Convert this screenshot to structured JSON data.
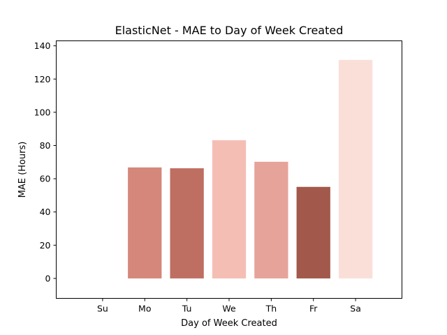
{
  "chart_data": {
    "type": "bar",
    "title": "ElasticNet - MAE to Day of Week Created",
    "xlabel": "Day of Week Created",
    "ylabel": "MAE (Hours)",
    "categories": [
      "Su",
      "Mo",
      "Tu",
      "We",
      "Th",
      "Fr",
      "Sa"
    ],
    "values": [
      0,
      66.8,
      66.3,
      83.2,
      70.2,
      55.1,
      131.5
    ],
    "colors": [
      "#ffffff",
      "#d4877a",
      "#bf6e62",
      "#f4beb5",
      "#e6a39a",
      "#a2584a",
      "#fadfd9"
    ],
    "ylim": [
      -12,
      143
    ],
    "yticks": [
      0,
      20,
      40,
      60,
      80,
      100,
      120,
      140
    ],
    "grid": false,
    "legend": "none"
  }
}
